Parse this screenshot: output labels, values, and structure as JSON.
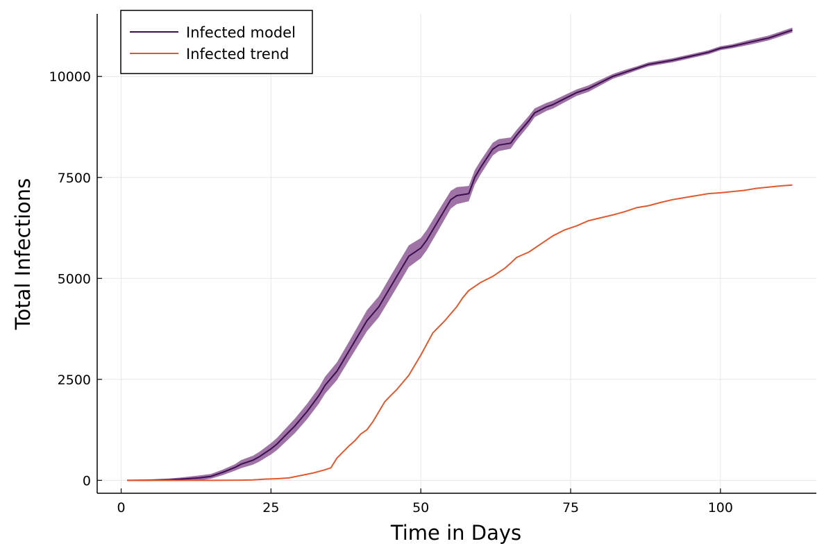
{
  "chart_data": {
    "type": "line",
    "title": "",
    "xlabel": "Time in Days",
    "ylabel": "Total Infections",
    "xlim": [
      -4,
      116
    ],
    "ylim": [
      -320,
      11550
    ],
    "xticks": [
      0,
      25,
      50,
      75,
      100
    ],
    "yticks": [
      0,
      2500,
      5000,
      7500,
      10000
    ],
    "grid": true,
    "legend_position": "top-left",
    "series": [
      {
        "name": "Infected model",
        "color": "#3b0f4f",
        "band_color": "#8e5b97",
        "x": [
          1,
          5,
          8,
          10,
          13,
          15,
          17,
          19,
          20,
          22,
          23,
          25,
          26,
          27,
          29,
          31,
          33,
          34,
          36,
          38,
          40,
          41,
          43,
          45,
          47,
          48,
          50,
          51,
          53,
          55,
          56,
          58,
          59,
          60,
          62,
          63,
          65,
          66,
          68,
          69,
          71,
          72,
          74,
          76,
          78,
          80,
          82,
          84,
          86,
          88,
          90,
          92,
          95,
          98,
          100,
          102,
          105,
          108,
          110,
          112
        ],
        "y": [
          0,
          5,
          15,
          30,
          60,
          100,
          200,
          320,
          400,
          500,
          580,
          780,
          900,
          1050,
          1350,
          1700,
          2100,
          2350,
          2700,
          3200,
          3700,
          3950,
          4300,
          4800,
          5300,
          5550,
          5750,
          5950,
          6450,
          6950,
          7050,
          7100,
          7500,
          7750,
          8200,
          8300,
          8350,
          8550,
          8900,
          9100,
          9250,
          9300,
          9450,
          9600,
          9700,
          9850,
          10000,
          10100,
          10200,
          10300,
          10350,
          10400,
          10500,
          10600,
          10700,
          10750,
          10850,
          10950,
          11050,
          11150
        ],
        "band": [
          10,
          20,
          30,
          40,
          60,
          60,
          70,
          80,
          100,
          110,
          120,
          140,
          150,
          160,
          180,
          190,
          200,
          210,
          220,
          230,
          250,
          260,
          260,
          270,
          270,
          270,
          250,
          250,
          240,
          220,
          210,
          190,
          180,
          170,
          160,
          150,
          140,
          130,
          120,
          110,
          100,
          100,
          90,
          80,
          80,
          70,
          60,
          60,
          50,
          50,
          50,
          50,
          50,
          50,
          50,
          50,
          60,
          60,
          60,
          60
        ]
      },
      {
        "name": "Infected trend",
        "color": "#e2572b",
        "x": [
          1,
          10,
          15,
          20,
          22,
          24,
          26,
          28,
          30,
          32,
          34,
          35,
          36,
          37,
          38,
          39,
          40,
          41,
          42,
          43,
          44,
          45,
          46,
          48,
          50,
          52,
          54,
          56,
          57,
          58,
          60,
          62,
          64,
          65,
          66,
          68,
          70,
          72,
          74,
          76,
          78,
          80,
          82,
          84,
          86,
          88,
          90,
          92,
          94,
          96,
          98,
          100,
          102,
          104,
          106,
          108,
          110,
          112
        ],
        "y": [
          0,
          0,
          0,
          5,
          10,
          30,
          40,
          60,
          120,
          180,
          260,
          310,
          550,
          700,
          850,
          980,
          1150,
          1250,
          1450,
          1700,
          1950,
          2100,
          2250,
          2600,
          3100,
          3650,
          3950,
          4300,
          4520,
          4700,
          4900,
          5050,
          5250,
          5380,
          5520,
          5650,
          5850,
          6050,
          6200,
          6300,
          6430,
          6500,
          6570,
          6650,
          6750,
          6800,
          6880,
          6950,
          7000,
          7050,
          7100,
          7120,
          7150,
          7180,
          7230,
          7260,
          7290,
          7310
        ]
      }
    ]
  }
}
